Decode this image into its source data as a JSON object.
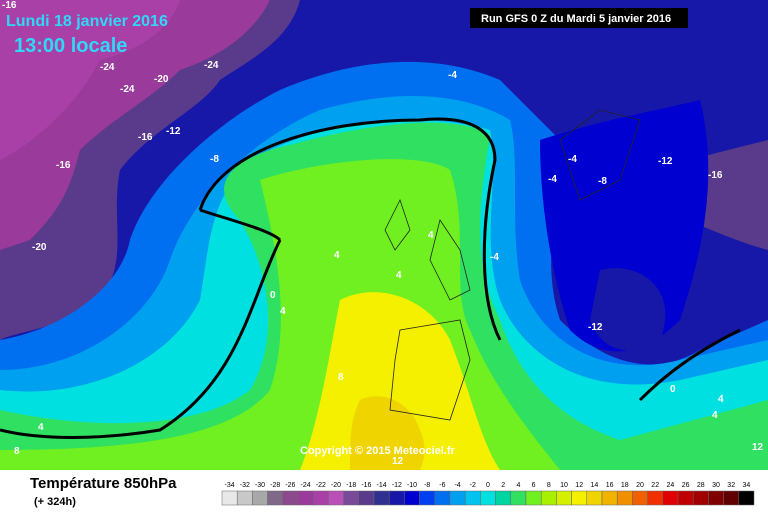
{
  "header": {
    "date": "Lundi 18 janvier 2016",
    "time": "13:00 locale",
    "run": "Run GFS 0 Z du Mardi 5 janvier 2016"
  },
  "copyright": "Copyright © 2015 Meteociel.fr",
  "footer": {
    "title": "Température 850hPa",
    "lead": "(+ 324h)"
  },
  "legend": {
    "values": [
      -34,
      -32,
      -30,
      -28,
      -26,
      -24,
      -22,
      -20,
      -18,
      -16,
      -14,
      -12,
      -10,
      -8,
      -6,
      -4,
      -2,
      0,
      2,
      4,
      6,
      8,
      10,
      12,
      14,
      16,
      18,
      20,
      22,
      24,
      26,
      28,
      30,
      32,
      34
    ],
    "colors": [
      "#e8e8e8",
      "#c8c8c8",
      "#a8a8a8",
      "#806888",
      "#8c4a8c",
      "#9a3a9a",
      "#a840a8",
      "#b850b8",
      "#7a4a9a",
      "#5a3a8a",
      "#303090",
      "#1818a8",
      "#0000d0",
      "#0040f0",
      "#0070f0",
      "#00a0f0",
      "#00c4f0",
      "#00e0e0",
      "#00d4a0",
      "#30e060",
      "#70f020",
      "#a8f000",
      "#d4f000",
      "#f4f000",
      "#f0d400",
      "#f0b400",
      "#f09000",
      "#f06000",
      "#f03000",
      "#e00000",
      "#c00000",
      "#a00000",
      "#800000",
      "#600000",
      "#000000"
    ]
  },
  "contour_labels": [
    "-16",
    "-24",
    "-24",
    "-20",
    "-24",
    "-16",
    "-12",
    "-16",
    "-8",
    "-20",
    "-4",
    "-4",
    "-4",
    "-8",
    "-12",
    "-16",
    "4",
    "4",
    "4",
    "-4",
    "0",
    "4",
    "-12",
    "8",
    "12",
    "4",
    "8",
    "0",
    "4",
    "4",
    "12"
  ]
}
